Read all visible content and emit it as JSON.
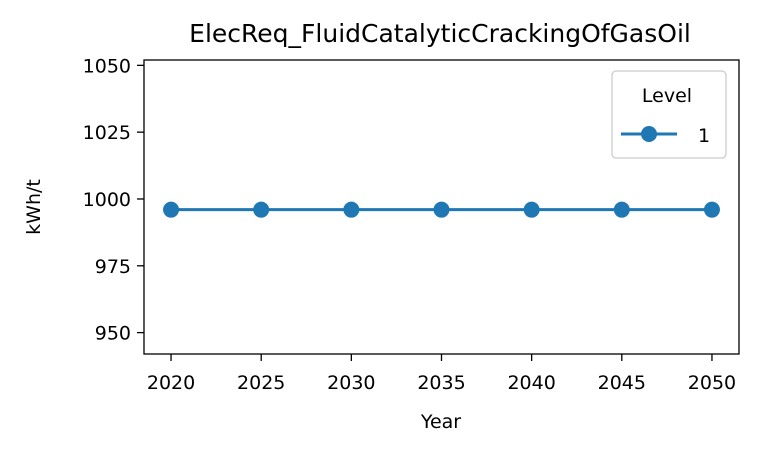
{
  "chart_data": {
    "type": "line",
    "title": "ElecReq_FluidCatalyticCrackingOfGasOil",
    "xlabel": "Year",
    "ylabel": "kWh/t",
    "x": [
      2020,
      2025,
      2030,
      2035,
      2040,
      2045,
      2050
    ],
    "xticks": [
      "2020",
      "2025",
      "2030",
      "2035",
      "2040",
      "2045",
      "2050"
    ],
    "yticks": [
      "950",
      "975",
      "1000",
      "1025",
      "1050"
    ],
    "ytick_values": [
      950,
      975,
      1000,
      1025,
      1050
    ],
    "xlim": [
      2018.5,
      2051.5
    ],
    "ylim": [
      942,
      1052
    ],
    "grid": false,
    "legend": {
      "title": "Level",
      "placement": "top-right"
    },
    "series": [
      {
        "name": "1",
        "color": "#1f77b4",
        "marker": "circle",
        "values": [
          996,
          996,
          996,
          996,
          996,
          996,
          996
        ]
      }
    ]
  }
}
